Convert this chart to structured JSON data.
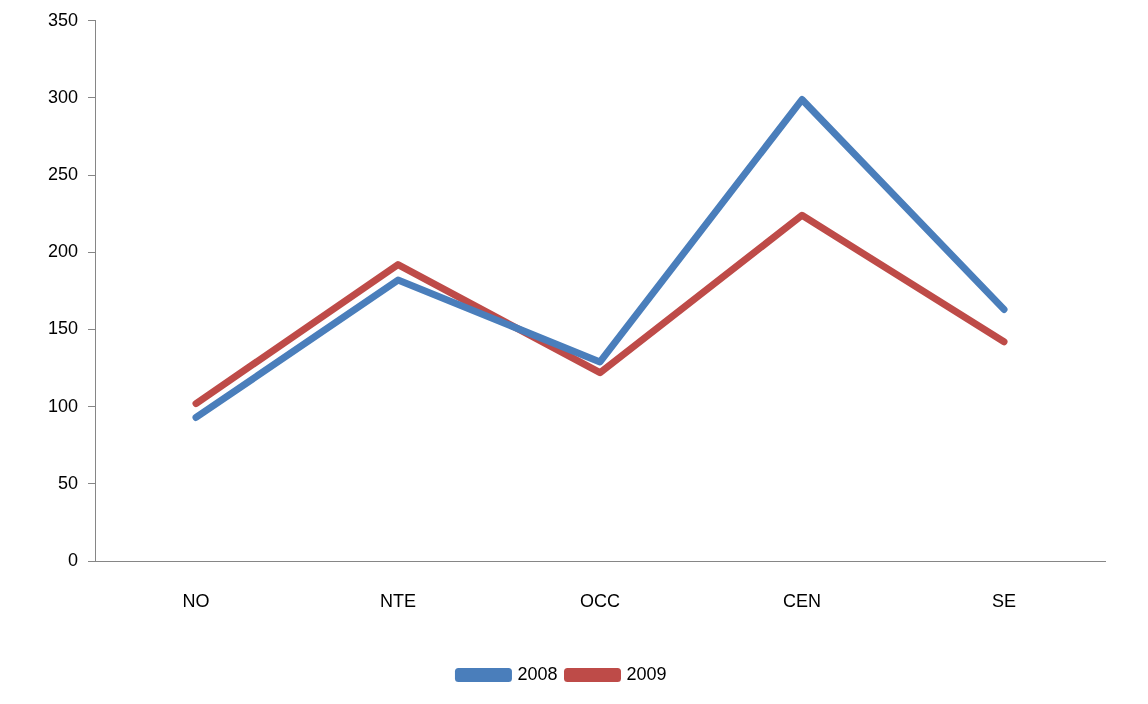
{
  "chart_data": {
    "type": "line",
    "categories": [
      "NO",
      "NTE",
      "OCC",
      "CEN",
      "SE"
    ],
    "series": [
      {
        "name": "2008",
        "color": "#4a7ebb",
        "values": [
          93,
          182,
          129,
          299,
          163
        ]
      },
      {
        "name": "2009",
        "color": "#be4b48",
        "values": [
          102,
          192,
          122,
          224,
          142
        ]
      }
    ],
    "ylim": [
      0,
      350
    ],
    "yticks": [
      0,
      50,
      100,
      150,
      200,
      250,
      300,
      350
    ],
    "grid": false,
    "legend": "bottom",
    "marker": "none",
    "line_style": "solid"
  }
}
